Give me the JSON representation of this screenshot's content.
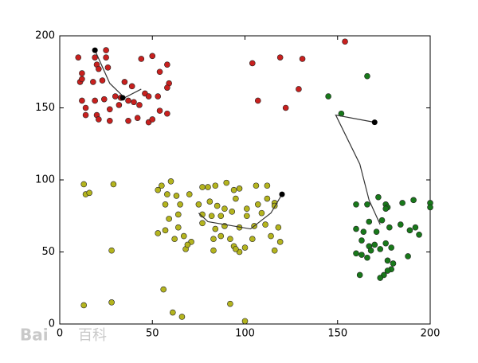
{
  "chart_data": {
    "type": "scatter",
    "xlim": [
      0,
      200
    ],
    "ylim": [
      0,
      200
    ],
    "xticks": [
      0,
      50,
      100,
      150,
      200
    ],
    "yticks": [
      0,
      50,
      100,
      150,
      200
    ],
    "series": [
      {
        "color": "#c8201e",
        "x": [
          10,
          25,
          19,
          25,
          44,
          50,
          58,
          12,
          20,
          21,
          26,
          11,
          12,
          18,
          23,
          35,
          54,
          59,
          58,
          39,
          12,
          14,
          19,
          24,
          30,
          33,
          46,
          48,
          53,
          14,
          20,
          27,
          32,
          37,
          40,
          43,
          54,
          58,
          27,
          37,
          42,
          48,
          50,
          21,
          104,
          119,
          131,
          107,
          122,
          129,
          154
        ],
        "values": [
          185,
          190,
          185,
          185,
          184,
          186,
          180,
          174,
          180,
          177,
          178,
          168,
          170,
          168,
          169,
          168,
          175,
          167,
          164,
          165,
          155,
          150,
          155,
          156,
          158,
          157,
          160,
          158,
          158,
          145,
          145,
          149,
          152,
          155,
          154,
          152,
          148,
          146,
          141,
          141,
          143,
          140,
          142,
          142,
          181,
          185,
          184,
          155,
          150,
          163,
          196
        ]
      },
      {
        "color": "#b4b41e",
        "x": [
          13,
          14,
          16,
          29,
          28,
          13,
          28,
          56,
          61,
          66,
          92,
          100,
          53,
          55,
          60,
          58,
          63,
          70,
          65,
          57,
          59,
          64,
          53,
          57,
          64,
          62,
          67,
          71,
          68,
          69,
          77,
          80,
          84,
          90,
          94,
          97,
          106,
          112,
          75,
          81,
          85,
          89,
          95,
          101,
          107,
          112,
          116,
          77,
          82,
          87,
          93,
          101,
          109,
          116,
          77,
          84,
          89,
          97,
          105,
          111,
          118,
          83,
          87,
          92,
          94,
          97,
          100,
          95,
          104,
          114,
          116,
          119,
          83
        ],
        "values": [
          97,
          90,
          91,
          97,
          51,
          13,
          15,
          24,
          8,
          5,
          14,
          2,
          93,
          96,
          99,
          90,
          89,
          90,
          83,
          83,
          73,
          76,
          63,
          65,
          67,
          59,
          61,
          57,
          52,
          55,
          95,
          95,
          96,
          98,
          93,
          94,
          96,
          96,
          83,
          85,
          82,
          80,
          87,
          80,
          83,
          87,
          84,
          76,
          75,
          75,
          78,
          75,
          77,
          82,
          70,
          66,
          68,
          67,
          68,
          69,
          67,
          59,
          61,
          59,
          54,
          50,
          53,
          52,
          59,
          61,
          51,
          57,
          51
        ]
      },
      {
        "color": "#18781a",
        "x": [
          145,
          152,
          166,
          160,
          166,
          172,
          176,
          177,
          185,
          191,
          200,
          200,
          160,
          164,
          167,
          171,
          174,
          178,
          184,
          189,
          192,
          194,
          163,
          167,
          168,
          170,
          173,
          176,
          179,
          160,
          163,
          166,
          177,
          180,
          179,
          177,
          175,
          173,
          162,
          188,
          176
        ],
        "values": [
          158,
          146,
          172,
          83,
          83,
          88,
          83,
          81,
          84,
          86,
          84,
          81,
          66,
          64,
          71,
          64,
          72,
          67,
          69,
          65,
          67,
          62,
          58,
          54,
          51,
          55,
          52,
          56,
          53,
          49,
          48,
          46,
          44,
          42,
          38,
          37,
          34,
          32,
          34,
          47,
          80
        ]
      }
    ],
    "paths": [
      {
        "color": "#333333",
        "x": [
          19,
          27,
          35,
          44
        ],
        "values": [
          190,
          167,
          157,
          163
        ]
      },
      {
        "color": "#333333",
        "x": [
          120,
          114,
          103,
          80,
          75
        ],
        "values": [
          90,
          77,
          66,
          71,
          77
        ]
      },
      {
        "color": "#333333",
        "x": [
          170,
          149,
          162,
          167,
          173
        ],
        "values": [
          140,
          145,
          111,
          86,
          69
        ]
      }
    ],
    "centroids": {
      "color": "#000000",
      "x": [
        19,
        34,
        120,
        170
      ],
      "values": [
        190,
        157,
        90,
        140
      ]
    }
  },
  "watermark": [
    "Bai",
    "百科"
  ]
}
